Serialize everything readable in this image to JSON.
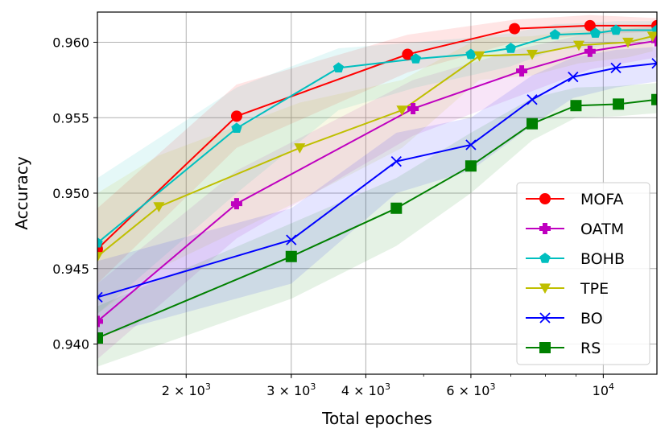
{
  "chart_data": {
    "type": "line",
    "xlabel": "Total epoches",
    "ylabel": "Accuracy",
    "xscale": "log",
    "xlim": [
      1420,
      12300
    ],
    "ylim": [
      0.938,
      0.962
    ],
    "xticks": [
      {
        "value": 2000,
        "label": "2 × 10^3",
        "base": "2 × 10",
        "exp": "3"
      },
      {
        "value": 3000,
        "label": "3 × 10^3",
        "base": "3 × 10",
        "exp": "3"
      },
      {
        "value": 4000,
        "label": "4 × 10^3",
        "base": "4 × 10",
        "exp": "3"
      },
      {
        "value": 6000,
        "label": "6 × 10^3",
        "base": "6 × 10",
        "exp": "3"
      },
      {
        "value": 10000,
        "label": "10^4",
        "base": "10",
        "exp": "4"
      }
    ],
    "yticks": [
      {
        "value": 0.94,
        "label": "0.940"
      },
      {
        "value": 0.945,
        "label": "0.945"
      },
      {
        "value": 0.95,
        "label": "0.950"
      },
      {
        "value": 0.955,
        "label": "0.955"
      },
      {
        "value": 0.96,
        "label": "0.960"
      }
    ],
    "grid": true,
    "legend_position": "lower right",
    "series": [
      {
        "name": "MOFA",
        "color": "#ff0000",
        "marker": "circle",
        "points": [
          [
            1420,
            0.9463
          ],
          [
            2430,
            0.9551
          ],
          [
            4700,
            0.9592
          ],
          [
            7100,
            0.9609
          ],
          [
            9500,
            0.9611
          ],
          [
            12300,
            0.9611
          ]
        ],
        "band_lower": [
          0.944,
          0.953,
          0.958,
          0.96,
          0.9605,
          0.9607
        ],
        "band_upper": [
          0.949,
          0.9572,
          0.9605,
          0.9615,
          0.9618,
          0.9616
        ]
      },
      {
        "name": "OATM",
        "color": "#bf00bf",
        "marker": "plus",
        "points": [
          [
            1420,
            0.9415
          ],
          [
            2430,
            0.9493
          ],
          [
            4800,
            0.9556
          ],
          [
            7300,
            0.9581
          ],
          [
            9500,
            0.9594
          ],
          [
            12300,
            0.9601
          ]
        ],
        "band_lower": [
          0.939,
          0.947,
          0.9538,
          0.9565,
          0.9582,
          0.959
        ],
        "band_upper": [
          0.944,
          0.9515,
          0.9575,
          0.9596,
          0.9606,
          0.9611
        ]
      },
      {
        "name": "BOHB",
        "color": "#00bfbf",
        "marker": "pentagon",
        "points": [
          [
            1420,
            0.9467
          ],
          [
            2430,
            0.9543
          ],
          [
            3600,
            0.9583
          ],
          [
            4850,
            0.9589
          ],
          [
            6000,
            0.9592
          ],
          [
            7000,
            0.9596
          ],
          [
            8300,
            0.9605
          ],
          [
            9700,
            0.9606
          ],
          [
            10500,
            0.9608
          ],
          [
            12300,
            0.9608
          ]
        ],
        "band_lower": [
          0.942,
          0.95,
          0.9555,
          0.957,
          0.9578,
          0.9584,
          0.9595,
          0.9597,
          0.96,
          0.9601
        ],
        "band_upper": [
          0.951,
          0.957,
          0.9596,
          0.96,
          0.9603,
          0.9606,
          0.9612,
          0.9613,
          0.9614,
          0.9614
        ]
      },
      {
        "name": "TPE",
        "color": "#bfbf00",
        "marker": "triangle-down",
        "points": [
          [
            1420,
            0.9458
          ],
          [
            1800,
            0.9491
          ],
          [
            3100,
            0.953
          ],
          [
            4600,
            0.9555
          ],
          [
            6200,
            0.9591
          ],
          [
            7600,
            0.9592
          ],
          [
            9100,
            0.9598
          ],
          [
            11000,
            0.96
          ],
          [
            12100,
            0.9604
          ]
        ],
        "band_lower": [
          0.942,
          0.945,
          0.9495,
          0.953,
          0.9575,
          0.9578,
          0.9586,
          0.959,
          0.9594
        ],
        "band_upper": [
          0.95,
          0.9525,
          0.956,
          0.9575,
          0.9603,
          0.9604,
          0.9608,
          0.961,
          0.9612
        ]
      },
      {
        "name": "BO",
        "color": "#0000ff",
        "marker": "x",
        "points": [
          [
            1420,
            0.9431
          ],
          [
            3000,
            0.9469
          ],
          [
            4500,
            0.9521
          ],
          [
            6000,
            0.9532
          ],
          [
            7600,
            0.9562
          ],
          [
            8900,
            0.9577
          ],
          [
            10500,
            0.9583
          ],
          [
            12300,
            0.9586
          ]
        ],
        "band_lower": [
          0.9405,
          0.944,
          0.95,
          0.9515,
          0.9545,
          0.9563,
          0.957,
          0.9574
        ],
        "band_upper": [
          0.9455,
          0.949,
          0.954,
          0.955,
          0.9578,
          0.959,
          0.9595,
          0.9597
        ]
      },
      {
        "name": "RS",
        "color": "#008000",
        "marker": "square",
        "points": [
          [
            1420,
            0.9404
          ],
          [
            3000,
            0.9458
          ],
          [
            4500,
            0.949
          ],
          [
            6000,
            0.9518
          ],
          [
            7600,
            0.9546
          ],
          [
            9000,
            0.9558
          ],
          [
            10600,
            0.9559
          ],
          [
            12300,
            0.9562
          ]
        ],
        "band_lower": [
          0.9385,
          0.943,
          0.9465,
          0.95,
          0.9535,
          0.955,
          0.9551,
          0.9553
        ],
        "band_upper": [
          0.9425,
          0.948,
          0.951,
          0.954,
          0.9563,
          0.957,
          0.9571,
          0.9573
        ]
      }
    ]
  }
}
